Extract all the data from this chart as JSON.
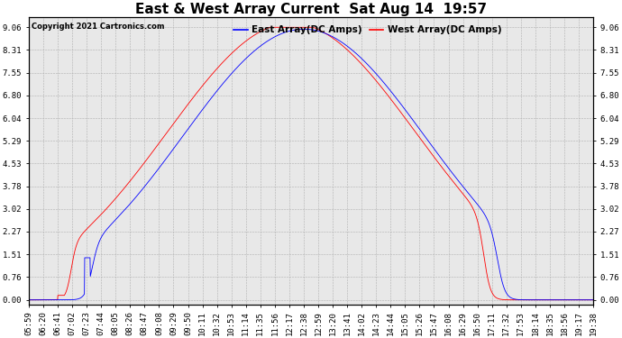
{
  "title": "East & West Array Current  Sat Aug 14  19:57",
  "copyright": "Copyright 2021 Cartronics.com",
  "east_label": "East Array(DC Amps)",
  "west_label": "West Array(DC Amps)",
  "east_color": "#0000FF",
  "west_color": "#FF0000",
  "yticks": [
    0.0,
    0.76,
    1.51,
    2.27,
    3.02,
    3.78,
    4.53,
    5.29,
    6.04,
    6.8,
    7.55,
    8.31,
    9.06
  ],
  "ymin": -0.15,
  "ymax": 9.4,
  "bg_color": "#FFFFFF",
  "plot_bg_color": "#E8E8E8",
  "grid_color": "#B0B0B0",
  "title_fontsize": 11,
  "label_fontsize": 7.5,
  "tick_fontsize": 6.5
}
